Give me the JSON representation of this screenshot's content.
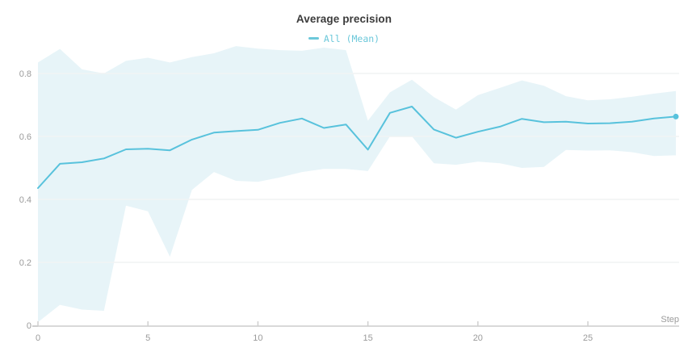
{
  "chart": {
    "title": "Average precision",
    "legend": {
      "items": [
        {
          "label": "All (Mean)",
          "color": "#6cc8da"
        }
      ]
    }
  },
  "chart_data": {
    "type": "line",
    "title": "Average precision",
    "xlabel": "Step",
    "ylabel": "",
    "legend_entries": [
      "All (Mean)"
    ],
    "legend_position": "top-center",
    "grid": true,
    "xlim": [
      0,
      29
    ],
    "ylim": [
      0,
      0.9
    ],
    "xticks": [
      0,
      5,
      10,
      15,
      20,
      25
    ],
    "yticks": [
      0,
      0.2,
      0.4,
      0.6,
      0.8
    ],
    "x": [
      0,
      1,
      2,
      3,
      4,
      5,
      6,
      7,
      8,
      9,
      10,
      11,
      12,
      13,
      14,
      15,
      16,
      17,
      18,
      19,
      20,
      21,
      22,
      23,
      24,
      25,
      26,
      27,
      28,
      29
    ],
    "series": [
      {
        "name": "All (Mean)",
        "color": "#58c2dc",
        "end_marker": true,
        "values": [
          0.436,
          0.513,
          0.518,
          0.53,
          0.559,
          0.561,
          0.556,
          0.59,
          0.612,
          0.617,
          0.621,
          0.643,
          0.657,
          0.627,
          0.638,
          0.558,
          0.675,
          0.695,
          0.622,
          0.596,
          0.615,
          0.631,
          0.656,
          0.645,
          0.647,
          0.641,
          0.642,
          0.647,
          0.657,
          0.663
        ]
      }
    ],
    "band": {
      "name": "min-max-range",
      "color": "#e7f4f8",
      "upper": [
        0.835,
        0.878,
        0.813,
        0.8,
        0.84,
        0.85,
        0.835,
        0.852,
        0.864,
        0.887,
        0.879,
        0.874,
        0.872,
        0.882,
        0.874,
        0.65,
        0.74,
        0.78,
        0.725,
        0.685,
        0.731,
        0.754,
        0.778,
        0.761,
        0.728,
        0.715,
        0.718,
        0.726,
        0.736,
        0.744
      ],
      "lower": [
        0.01,
        0.065,
        0.05,
        0.046,
        0.38,
        0.362,
        0.218,
        0.43,
        0.487,
        0.459,
        0.456,
        0.47,
        0.487,
        0.497,
        0.497,
        0.49,
        0.6,
        0.6,
        0.515,
        0.51,
        0.52,
        0.515,
        0.5,
        0.503,
        0.557,
        0.555,
        0.556,
        0.55,
        0.538,
        0.54
      ]
    },
    "colors": {
      "axis_text": "#9b9b9b",
      "grid": "#f1f3f4",
      "axis_line": "#d9d9d9",
      "tick": "#cfcfcf",
      "title": "#3b3b3b"
    }
  }
}
